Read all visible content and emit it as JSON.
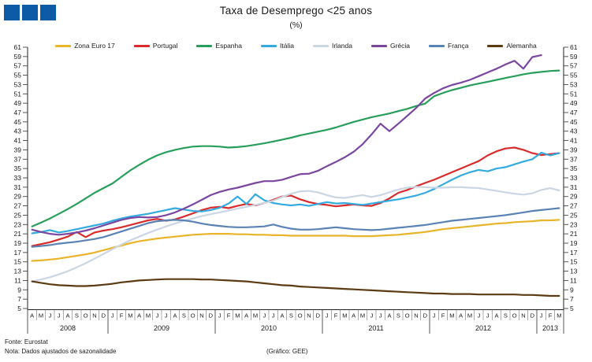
{
  "header": {
    "title": "Taxa de Desemprego <25 anos",
    "subtitle": "(%)",
    "logo_color": "#0d5ba6"
  },
  "footer": {
    "source": "Fonte: Eurostat",
    "note": "Nota: Dados ajustados de sazonalidade",
    "credit": "(Gráfico: GEE)"
  },
  "chart_data": {
    "type": "line",
    "title": "Taxa de Desemprego <25 anos",
    "ylabel": "%",
    "ylim": [
      5,
      61
    ],
    "ytick_step": 2,
    "grid": false,
    "legend_position": "top",
    "x_axis": {
      "years": [
        {
          "label": "2008",
          "months": [
            "A",
            "M",
            "J",
            "J",
            "A",
            "S",
            "O",
            "N",
            "D"
          ]
        },
        {
          "label": "2009",
          "months": [
            "J",
            "F",
            "M",
            "A",
            "M",
            "J",
            "J",
            "A",
            "S",
            "O",
            "N",
            "D"
          ]
        },
        {
          "label": "2010",
          "months": [
            "J",
            "F",
            "M",
            "A",
            "M",
            "J",
            "J",
            "A",
            "S",
            "O",
            "N",
            "D"
          ]
        },
        {
          "label": "2011",
          "months": [
            "J",
            "F",
            "M",
            "A",
            "M",
            "J",
            "J",
            "A",
            "S",
            "O",
            "N",
            "D"
          ]
        },
        {
          "label": "2012",
          "months": [
            "J",
            "F",
            "M",
            "A",
            "M",
            "J",
            "J",
            "A",
            "S",
            "O",
            "N",
            "D"
          ]
        },
        {
          "label": "2013",
          "months": [
            "J",
            "F",
            "M"
          ]
        }
      ]
    },
    "series": [
      {
        "name": "Zona Euro 17",
        "color": "#e8b42a",
        "values": [
          15.2,
          15.3,
          15.5,
          15.7,
          16.0,
          16.3,
          16.6,
          17.0,
          17.5,
          18.0,
          18.5,
          19.0,
          19.4,
          19.7,
          20.0,
          20.2,
          20.4,
          20.6,
          20.8,
          20.9,
          21.0,
          21.0,
          21.0,
          20.9,
          20.9,
          20.8,
          20.8,
          20.7,
          20.7,
          20.6,
          20.6,
          20.6,
          20.6,
          20.6,
          20.6,
          20.6,
          20.5,
          20.5,
          20.5,
          20.6,
          20.7,
          20.8,
          21.0,
          21.2,
          21.4,
          21.7,
          22.0,
          22.2,
          22.4,
          22.6,
          22.8,
          23.0,
          23.2,
          23.3,
          23.5,
          23.6,
          23.7,
          23.9,
          23.9,
          24.0
        ]
      },
      {
        "name": "Portugal",
        "color": "#d92b2b",
        "values": [
          18.4,
          18.8,
          19.2,
          19.8,
          20.4,
          21.4,
          20.3,
          21.3,
          21.7,
          22.0,
          22.4,
          22.9,
          23.4,
          23.9,
          24.2,
          23.8,
          24.1,
          24.7,
          25.4,
          26.1,
          26.6,
          26.8,
          26.5,
          27.0,
          27.4,
          27.1,
          27.6,
          28.3,
          29.0,
          29.2,
          28.4,
          27.8,
          27.4,
          27.2,
          26.9,
          27.1,
          27.3,
          27.1,
          27.0,
          27.6,
          28.6,
          29.8,
          30.4,
          31.2,
          31.9,
          32.6,
          33.4,
          34.2,
          35.0,
          35.8,
          36.6,
          37.8,
          38.7,
          39.3,
          39.5,
          39.0,
          38.3,
          37.9,
          38.1,
          38.3
        ]
      },
      {
        "name": "Espanha",
        "color": "#279f5b",
        "values": [
          22.6,
          23.4,
          24.3,
          25.3,
          26.3,
          27.4,
          28.6,
          29.8,
          30.8,
          31.8,
          33.2,
          34.6,
          35.8,
          36.9,
          37.8,
          38.5,
          39.0,
          39.4,
          39.7,
          39.8,
          39.8,
          39.7,
          39.5,
          39.6,
          39.8,
          40.1,
          40.4,
          40.8,
          41.2,
          41.6,
          42.1,
          42.5,
          42.9,
          43.3,
          43.8,
          44.4,
          45.0,
          45.5,
          46.0,
          46.4,
          46.8,
          47.3,
          47.8,
          48.4,
          48.9,
          50.5,
          51.2,
          51.8,
          52.3,
          52.8,
          53.2,
          53.6,
          54.0,
          54.4,
          54.8,
          55.2,
          55.5,
          55.7,
          55.9,
          56.0
        ]
      },
      {
        "name": "Itália",
        "color": "#33abe0",
        "values": [
          21.1,
          21.4,
          21.8,
          21.3,
          21.6,
          22.0,
          22.4,
          22.8,
          23.2,
          23.8,
          24.3,
          24.7,
          25.0,
          25.3,
          25.7,
          26.1,
          26.5,
          26.2,
          25.9,
          25.8,
          26.1,
          26.6,
          27.5,
          29.0,
          27.4,
          29.5,
          28.2,
          27.6,
          27.3,
          27.1,
          27.3,
          27.0,
          27.4,
          27.8,
          27.5,
          27.6,
          27.4,
          27.2,
          27.5,
          27.8,
          28.1,
          28.4,
          28.8,
          29.2,
          29.8,
          30.6,
          31.6,
          32.6,
          33.5,
          34.2,
          34.7,
          34.4,
          35.0,
          35.3,
          35.9,
          36.5,
          37.0,
          38.4,
          37.8,
          38.3
        ]
      },
      {
        "name": "Irlanda",
        "color": "#cbd6e4",
        "values": [
          10.8,
          11.2,
          11.7,
          12.3,
          13.0,
          13.8,
          14.7,
          15.7,
          16.7,
          17.7,
          18.7,
          19.6,
          20.4,
          21.2,
          21.9,
          22.6,
          23.2,
          23.8,
          24.3,
          24.8,
          25.2,
          25.6,
          26.0,
          26.4,
          26.8,
          27.2,
          27.6,
          28.1,
          28.9,
          29.6,
          30.1,
          30.2,
          29.9,
          29.3,
          28.8,
          28.7,
          29.0,
          29.3,
          28.9,
          29.3,
          29.9,
          30.5,
          30.9,
          31.1,
          31.0,
          30.9,
          30.9,
          31.0,
          31.0,
          30.9,
          30.8,
          30.5,
          30.2,
          29.9,
          29.6,
          29.4,
          29.7,
          30.4,
          30.8,
          30.3
        ]
      },
      {
        "name": "Grécia",
        "color": "#7b46a0",
        "values": [
          21.9,
          21.4,
          21.0,
          20.8,
          21.0,
          21.3,
          21.7,
          22.2,
          22.8,
          23.4,
          24.0,
          24.4,
          24.6,
          24.5,
          24.6,
          25.0,
          25.6,
          26.4,
          27.3,
          28.3,
          29.3,
          30.0,
          30.5,
          30.9,
          31.4,
          31.9,
          32.3,
          32.3,
          32.6,
          33.2,
          33.8,
          33.9,
          34.5,
          35.5,
          36.4,
          37.4,
          38.6,
          40.2,
          42.3,
          44.6,
          43.0,
          44.6,
          46.3,
          48.0,
          50.0,
          51.2,
          52.2,
          52.9,
          53.4,
          54.0,
          54.8,
          55.6,
          56.4,
          57.3,
          58.1,
          56.4,
          58.9,
          59.3,
          null,
          null
        ]
      },
      {
        "name": "França",
        "color": "#5a82b4",
        "values": [
          18.2,
          18.4,
          18.6,
          18.9,
          19.1,
          19.3,
          19.6,
          19.9,
          20.3,
          20.9,
          21.5,
          22.1,
          22.7,
          23.3,
          23.7,
          23.9,
          24.0,
          23.9,
          23.6,
          23.2,
          22.9,
          22.7,
          22.5,
          22.4,
          22.4,
          22.5,
          22.6,
          23.0,
          22.5,
          22.1,
          21.9,
          21.9,
          22.0,
          22.2,
          22.4,
          22.2,
          22.0,
          21.9,
          21.8,
          21.9,
          22.1,
          22.3,
          22.5,
          22.7,
          22.9,
          23.2,
          23.5,
          23.8,
          24.0,
          24.2,
          24.4,
          24.6,
          24.8,
          25.0,
          25.3,
          25.6,
          25.9,
          26.1,
          26.3,
          26.5
        ]
      },
      {
        "name": "Alemanha",
        "color": "#5c3b12",
        "values": [
          10.8,
          10.5,
          10.2,
          10.0,
          9.9,
          9.8,
          9.8,
          9.9,
          10.1,
          10.3,
          10.6,
          10.8,
          11.0,
          11.1,
          11.2,
          11.3,
          11.3,
          11.3,
          11.3,
          11.2,
          11.2,
          11.1,
          11.0,
          10.9,
          10.8,
          10.6,
          10.4,
          10.2,
          10.0,
          9.9,
          9.7,
          9.6,
          9.5,
          9.4,
          9.3,
          9.2,
          9.1,
          9.0,
          8.9,
          8.8,
          8.7,
          8.6,
          8.5,
          8.4,
          8.3,
          8.2,
          8.2,
          8.1,
          8.1,
          8.1,
          8.0,
          8.0,
          8.0,
          8.0,
          8.0,
          7.9,
          7.9,
          7.8,
          7.7,
          7.7
        ]
      }
    ]
  }
}
